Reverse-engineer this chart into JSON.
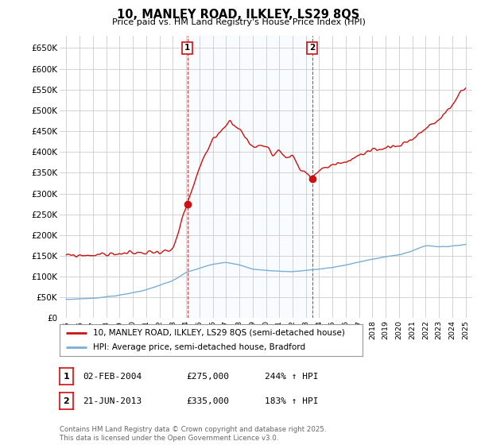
{
  "title": "10, MANLEY ROAD, ILKLEY, LS29 8QS",
  "subtitle": "Price paid vs. HM Land Registry's House Price Index (HPI)",
  "ylabel_ticks": [
    "£0",
    "£50K",
    "£100K",
    "£150K",
    "£200K",
    "£250K",
    "£300K",
    "£350K",
    "£400K",
    "£450K",
    "£500K",
    "£550K",
    "£600K",
    "£650K"
  ],
  "ytick_values": [
    0,
    50000,
    100000,
    150000,
    200000,
    250000,
    300000,
    350000,
    400000,
    450000,
    500000,
    550000,
    600000,
    650000
  ],
  "ylim": [
    0,
    680000
  ],
  "xlim_start": 1994.5,
  "xlim_end": 2025.5,
  "hpi_color": "#7aaed6",
  "price_color": "#cc1111",
  "shade_color": "#ddeeff",
  "marker1_x": 2004.09,
  "marker1_y": 275000,
  "marker2_x": 2013.47,
  "marker2_y": 335000,
  "legend_label1": "10, MANLEY ROAD, ILKLEY, LS29 8QS (semi-detached house)",
  "legend_label2": "HPI: Average price, semi-detached house, Bradford",
  "table_row1": [
    "1",
    "02-FEB-2004",
    "£275,000",
    "244% ↑ HPI"
  ],
  "table_row2": [
    "2",
    "21-JUN-2013",
    "£335,000",
    "183% ↑ HPI"
  ],
  "footer": "Contains HM Land Registry data © Crown copyright and database right 2025.\nThis data is licensed under the Open Government Licence v3.0.",
  "background_color": "#ffffff",
  "grid_color": "#cccccc"
}
